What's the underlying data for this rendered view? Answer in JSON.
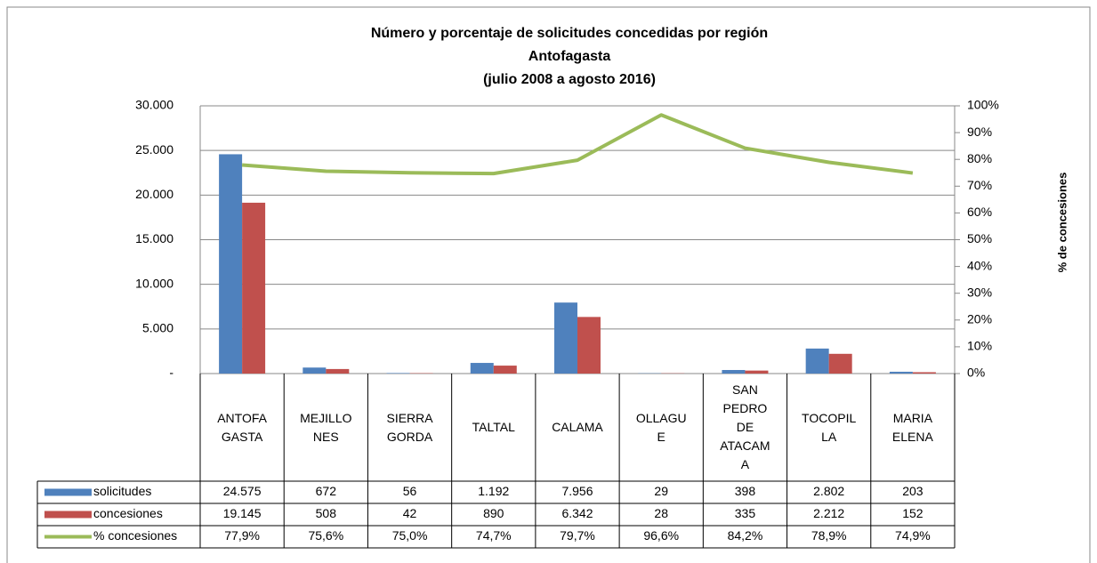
{
  "chart_data": {
    "type": "bar",
    "title": [
      "Número y porcentaje de solicitudes concedidas por región",
      "Antofagasta",
      "(julio 2008 a agosto 2016)"
    ],
    "y2_label": "% de concesiones",
    "categories": [
      "ANTOFA\nGASTA",
      "MEJILLO\nNES",
      "SIERRA\nGORDA",
      "TALTAL",
      "CALAMA",
      "OLLAGU\nE",
      "SAN\nPEDRO\nDE\nATACAM\nA",
      "TOCOPIL\nLA",
      "MARIA\nELENA"
    ],
    "series": [
      {
        "name": "solicitudes",
        "type": "bar",
        "color": "#4f81bd",
        "values": [
          24575,
          672,
          56,
          1192,
          7956,
          29,
          398,
          2802,
          203
        ],
        "value_labels": [
          "24.575",
          "672",
          "56",
          "1.192",
          "7.956",
          "29",
          "398",
          "2.802",
          "203"
        ]
      },
      {
        "name": "concesiones",
        "type": "bar",
        "color": "#c0504d",
        "values": [
          19145,
          508,
          42,
          890,
          6342,
          28,
          335,
          2212,
          152
        ],
        "value_labels": [
          "19.145",
          "508",
          "42",
          "890",
          "6.342",
          "28",
          "335",
          "2.212",
          "152"
        ]
      },
      {
        "name": "% concesiones",
        "type": "line",
        "axis": "y2",
        "color": "#9bbb59",
        "values": [
          77.9,
          75.6,
          75.0,
          74.7,
          79.7,
          96.6,
          84.2,
          78.9,
          74.9
        ],
        "value_labels": [
          "77,9%",
          "75,6%",
          "75,0%",
          "74,7%",
          "79,7%",
          "96,6%",
          "84,2%",
          "78,9%",
          "74,9%"
        ]
      }
    ],
    "ylim": [
      0,
      30000
    ],
    "yticks": [
      {
        "value": 0,
        "label": "-"
      },
      {
        "value": 5000,
        "label": "5.000"
      },
      {
        "value": 10000,
        "label": "10.000"
      },
      {
        "value": 15000,
        "label": "15.000"
      },
      {
        "value": 20000,
        "label": "20.000"
      },
      {
        "value": 25000,
        "label": "25.000"
      },
      {
        "value": 30000,
        "label": "30.000"
      }
    ],
    "y2lim": [
      0,
      100
    ],
    "y2ticks": [
      {
        "value": 0,
        "label": "0%"
      },
      {
        "value": 10,
        "label": "10%"
      },
      {
        "value": 20,
        "label": "20%"
      },
      {
        "value": 30,
        "label": "30%"
      },
      {
        "value": 40,
        "label": "40%"
      },
      {
        "value": 50,
        "label": "50%"
      },
      {
        "value": 60,
        "label": "60%"
      },
      {
        "value": 70,
        "label": "70%"
      },
      {
        "value": 80,
        "label": "80%"
      },
      {
        "value": 90,
        "label": "90%"
      },
      {
        "value": 100,
        "label": "100%"
      }
    ],
    "grid": true
  }
}
